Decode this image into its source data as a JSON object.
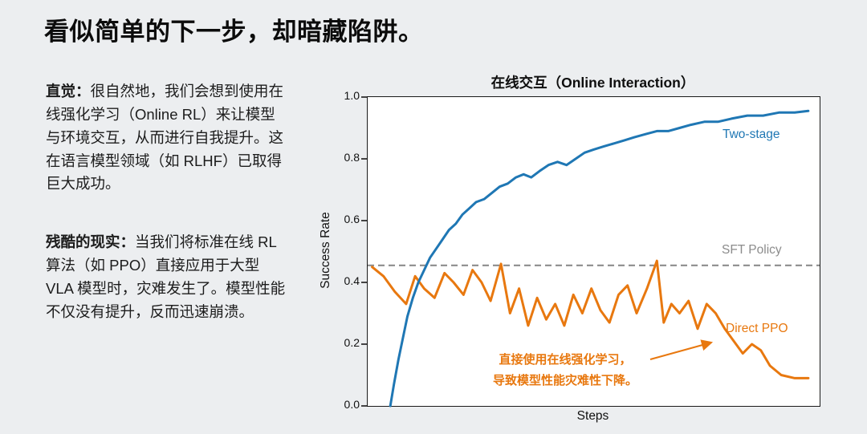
{
  "title": "看似简单的下一步，却暗藏陷阱。",
  "left": {
    "p1_lead": "直觉：",
    "p1_body": "很自然地，我们会想到使用在线强化学习（Online RL）来让模型与环境交互，从而进行自我提升。这在语言模型领域（如 RLHF）已取得巨大成功。",
    "p2_lead": "残酷的现实：",
    "p2_body": "当我们将标准在线 RL 算法（如 PPO）直接应用于大型 VLA 模型时，灾难发生了。模型性能不仅没有提升，反而迅速崩溃。"
  },
  "chart_data": {
    "type": "line",
    "title": "在线交互（Online Interaction）",
    "xlabel": "Steps",
    "ylabel": "Success Rate",
    "ylim": [
      0.0,
      1.0
    ],
    "yticks": [
      "0.0",
      "0.2",
      "0.4",
      "0.6",
      "0.8",
      "1.0"
    ],
    "grid": false,
    "legend_position": "inline-labels",
    "reference_line": {
      "label": "SFT Policy",
      "value": 0.455,
      "style": "dashed",
      "color": "#8c8c8c"
    },
    "series": [
      {
        "name": "Two-stage",
        "color": "#1f77b4",
        "x": [
          0.05,
          0.058,
          0.068,
          0.078,
          0.088,
          0.1,
          0.112,
          0.125,
          0.138,
          0.152,
          0.166,
          0.18,
          0.195,
          0.21,
          0.225,
          0.24,
          0.258,
          0.275,
          0.292,
          0.31,
          0.328,
          0.345,
          0.362,
          0.38,
          0.4,
          0.42,
          0.44,
          0.46,
          0.48,
          0.5,
          0.522,
          0.545,
          0.568,
          0.59,
          0.615,
          0.64,
          0.665,
          0.69,
          0.715,
          0.745,
          0.775,
          0.805,
          0.84,
          0.875,
          0.91,
          0.945,
          0.975
        ],
        "y": [
          0.0,
          0.07,
          0.15,
          0.22,
          0.29,
          0.35,
          0.4,
          0.44,
          0.48,
          0.51,
          0.54,
          0.57,
          0.59,
          0.62,
          0.64,
          0.66,
          0.67,
          0.69,
          0.71,
          0.72,
          0.74,
          0.75,
          0.74,
          0.76,
          0.78,
          0.79,
          0.78,
          0.8,
          0.82,
          0.83,
          0.84,
          0.85,
          0.86,
          0.87,
          0.88,
          0.89,
          0.89,
          0.9,
          0.91,
          0.92,
          0.92,
          0.93,
          0.94,
          0.94,
          0.95,
          0.95,
          0.955
        ]
      },
      {
        "name": "Direct PPO",
        "color": "#e8780f",
        "x": [
          0.01,
          0.035,
          0.06,
          0.085,
          0.105,
          0.125,
          0.148,
          0.17,
          0.19,
          0.212,
          0.232,
          0.252,
          0.272,
          0.295,
          0.315,
          0.335,
          0.355,
          0.375,
          0.395,
          0.415,
          0.435,
          0.455,
          0.475,
          0.495,
          0.515,
          0.535,
          0.555,
          0.575,
          0.595,
          0.618,
          0.64,
          0.655,
          0.672,
          0.69,
          0.71,
          0.73,
          0.75,
          0.77,
          0.79,
          0.81,
          0.83,
          0.85,
          0.87,
          0.89,
          0.915,
          0.945,
          0.975
        ],
        "y": [
          0.45,
          0.42,
          0.37,
          0.33,
          0.42,
          0.38,
          0.35,
          0.43,
          0.4,
          0.36,
          0.44,
          0.4,
          0.34,
          0.46,
          0.3,
          0.38,
          0.26,
          0.35,
          0.28,
          0.33,
          0.26,
          0.36,
          0.3,
          0.38,
          0.31,
          0.27,
          0.36,
          0.39,
          0.3,
          0.38,
          0.47,
          0.27,
          0.33,
          0.3,
          0.34,
          0.25,
          0.33,
          0.3,
          0.25,
          0.21,
          0.17,
          0.2,
          0.18,
          0.13,
          0.1,
          0.09,
          0.09
        ]
      }
    ],
    "annotation": {
      "lines": [
        "直接使用在线强化学习，",
        "导致模型性能灾难性下降。"
      ],
      "color": "#e8780f"
    }
  }
}
